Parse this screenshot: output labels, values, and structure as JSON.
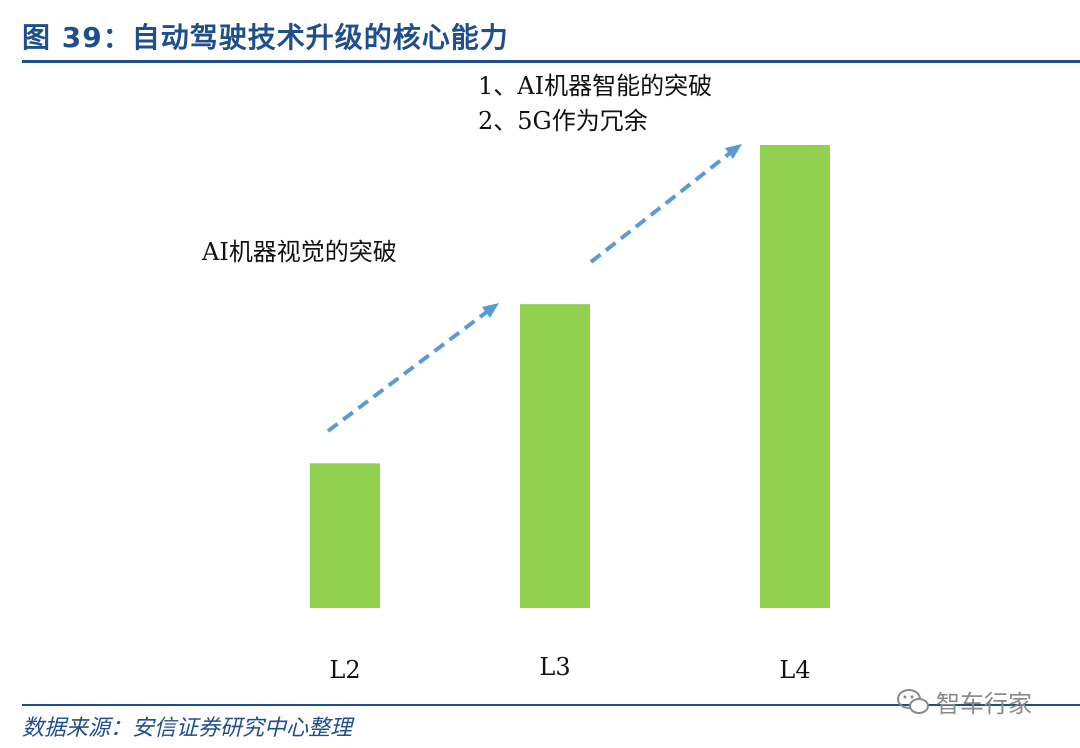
{
  "header": {
    "title": "图 39：自动驾驶技术升级的核心能力"
  },
  "footer": {
    "source": "数据来源：安信证券研究中心整理",
    "watermark": "智车行家"
  },
  "annotations": {
    "l2_to_l3": "AI机器视觉的突破",
    "l3_to_l4_line1": "1、AI机器智能的突破",
    "l3_to_l4_line2": "2、5G作为冗余"
  },
  "colors": {
    "bar": "#92d050",
    "arrow": "#5b9bd5",
    "title": "#1f4e8c"
  },
  "chart_data": {
    "type": "bar",
    "title": "图 39：自动驾驶技术升级的核心能力",
    "categories": [
      "L2",
      "L3",
      "L4"
    ],
    "values": [
      1,
      2.1,
      3.2
    ],
    "ylim": [
      0,
      3.2
    ],
    "grid": false,
    "legend": "none",
    "annotations": [
      "AI机器视觉的突破",
      "1、AI机器智能的突破",
      "2、5G作为冗余"
    ]
  }
}
